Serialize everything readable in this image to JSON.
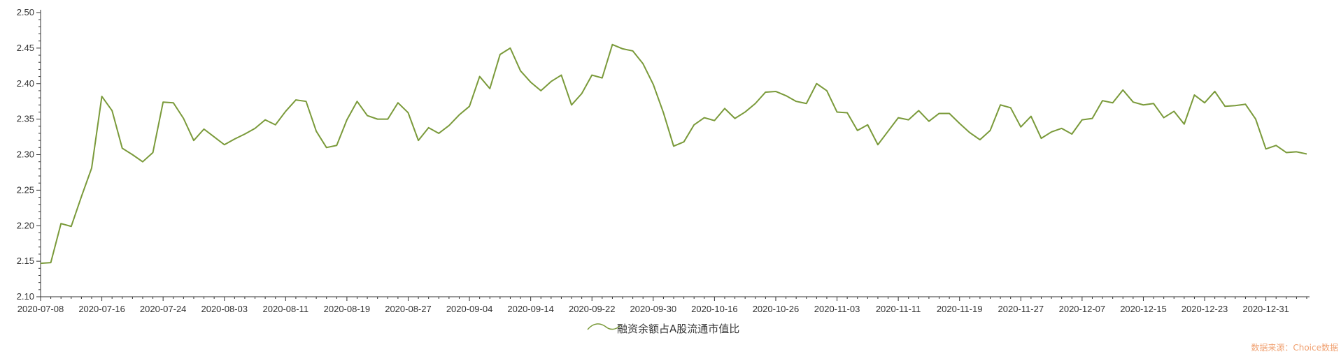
{
  "chart_data": {
    "type": "line",
    "title": "",
    "xlabel": "",
    "ylabel": "",
    "ylim": [
      2.1,
      2.5
    ],
    "y_ticks": [
      "2.10",
      "2.15",
      "2.20",
      "2.25",
      "2.30",
      "2.35",
      "2.40",
      "2.45",
      "2.50"
    ],
    "x_tick_labels": [
      {
        "index": 0,
        "label": "2020-07-08"
      },
      {
        "index": 6,
        "label": "2020-07-16"
      },
      {
        "index": 12,
        "label": "2020-07-24"
      },
      {
        "index": 18,
        "label": "2020-08-03"
      },
      {
        "index": 24,
        "label": "2020-08-11"
      },
      {
        "index": 30,
        "label": "2020-08-19"
      },
      {
        "index": 36,
        "label": "2020-08-27"
      },
      {
        "index": 42,
        "label": "2020-09-04"
      },
      {
        "index": 48,
        "label": "2020-09-14"
      },
      {
        "index": 54,
        "label": "2020-09-22"
      },
      {
        "index": 60,
        "label": "2020-09-30"
      },
      {
        "index": 66,
        "label": "2020-10-16"
      },
      {
        "index": 72,
        "label": "2020-10-26"
      },
      {
        "index": 78,
        "label": "2020-11-03"
      },
      {
        "index": 84,
        "label": "2020-11-11"
      },
      {
        "index": 90,
        "label": "2020-11-19"
      },
      {
        "index": 96,
        "label": "2020-11-27"
      },
      {
        "index": 102,
        "label": "2020-12-07"
      },
      {
        "index": 108,
        "label": "2020-12-15"
      },
      {
        "index": 114,
        "label": "2020-12-23"
      },
      {
        "index": 120,
        "label": "2020-12-31"
      }
    ],
    "series": [
      {
        "name": "融资余额占A股流通市值比",
        "color": "#7a9a3a",
        "values": [
          2.147,
          2.148,
          2.203,
          2.199,
          2.241,
          2.281,
          2.382,
          2.362,
          2.309,
          2.3,
          2.29,
          2.303,
          2.374,
          2.373,
          2.351,
          2.32,
          2.336,
          2.325,
          2.314,
          2.322,
          2.329,
          2.337,
          2.349,
          2.342,
          2.361,
          2.377,
          2.375,
          2.333,
          2.31,
          2.313,
          2.349,
          2.375,
          2.355,
          2.35,
          2.35,
          2.373,
          2.359,
          2.32,
          2.338,
          2.33,
          2.341,
          2.356,
          2.368,
          2.41,
          2.393,
          2.441,
          2.45,
          2.418,
          2.402,
          2.39,
          2.403,
          2.412,
          2.37,
          2.386,
          2.412,
          2.408,
          2.455,
          2.449,
          2.446,
          2.428,
          2.399,
          2.359,
          2.312,
          2.318,
          2.342,
          2.352,
          2.348,
          2.365,
          2.351,
          2.36,
          2.372,
          2.388,
          2.389,
          2.383,
          2.375,
          2.372,
          2.4,
          2.39,
          2.36,
          2.359,
          2.334,
          2.342,
          2.314,
          2.333,
          2.352,
          2.349,
          2.362,
          2.347,
          2.358,
          2.358,
          2.344,
          2.331,
          2.321,
          2.334,
          2.37,
          2.366,
          2.339,
          2.354,
          2.323,
          2.332,
          2.337,
          2.329,
          2.349,
          2.351,
          2.376,
          2.373,
          2.391,
          2.374,
          2.37,
          2.372,
          2.352,
          2.361,
          2.343,
          2.384,
          2.373,
          2.389,
          2.368,
          2.369,
          2.371,
          2.35,
          2.308,
          2.313,
          2.303,
          2.304,
          2.301
        ]
      }
    ],
    "legend_position": "bottom-center",
    "grid": false
  },
  "source": {
    "text": "数据来源：Choice数据"
  }
}
